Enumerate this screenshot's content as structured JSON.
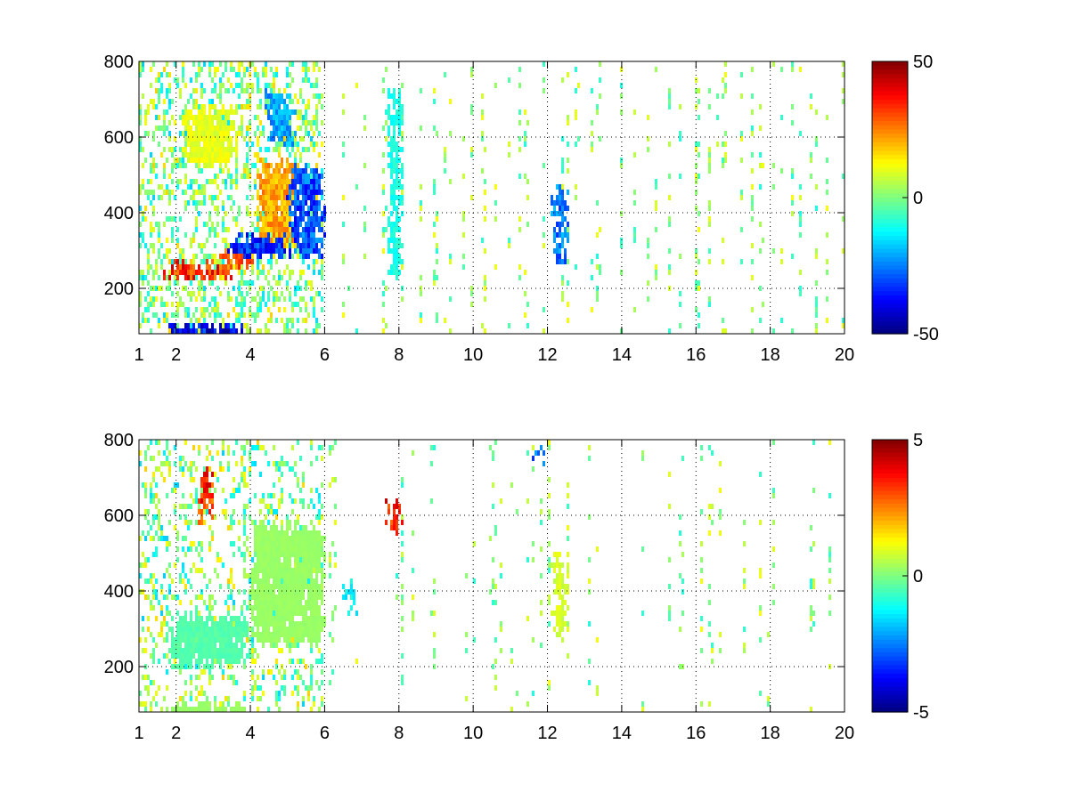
{
  "chart_data": [
    {
      "type": "heatmap",
      "title": "",
      "xlabel": "",
      "ylabel": "",
      "xlim": [
        1,
        20
      ],
      "ylim": [
        80,
        800
      ],
      "x_ticks": [
        1,
        2,
        4,
        6,
        8,
        10,
        12,
        14,
        16,
        18,
        20
      ],
      "x_tick_labels": [
        "1",
        "2",
        "4",
        "6",
        "8",
        "10",
        "12",
        "14",
        "16",
        "18",
        "20"
      ],
      "y_ticks": [
        200,
        400,
        600,
        800
      ],
      "y_tick_labels": [
        "200",
        "400",
        "600",
        "800"
      ],
      "grid": true,
      "colormap": "jet",
      "clim": [
        -50,
        50
      ],
      "colorbar_ticks": [
        50,
        0,
        -50
      ],
      "colorbar_tick_labels": [
        "50",
        "0",
        "-50"
      ],
      "features": [
        {
          "x": [
            1.9,
            3.3
          ],
          "y": 245,
          "value": 40
        },
        {
          "x": [
            3.3,
            3.9
          ],
          "y": 280,
          "value": 35
        },
        {
          "x": [
            4.4,
            5.0
          ],
          "y": [
            330,
            520
          ],
          "value": 25
        },
        {
          "x": [
            2.4,
            3.4
          ],
          "y": [
            540,
            660
          ],
          "value": 12
        },
        {
          "x": [
            3.6,
            4.8
          ],
          "y": [
            300,
            320
          ],
          "value": -40
        },
        {
          "x": [
            4.6,
            5.0
          ],
          "y": [
            600,
            700
          ],
          "value": -25
        },
        {
          "x": [
            5.2,
            5.8
          ],
          "y": [
            300,
            500
          ],
          "value": -35
        },
        {
          "x": [
            2.0,
            3.6
          ],
          "y": 85,
          "value": -45
        },
        {
          "x": [
            12.35,
            12.35
          ],
          "y": [
            280,
            460
          ],
          "value": -30
        },
        {
          "x": [
            7.9,
            7.9
          ],
          "y": [
            250,
            700
          ],
          "value": -12
        }
      ]
    },
    {
      "type": "heatmap",
      "title": "",
      "xlabel": "",
      "ylabel": "",
      "xlim": [
        1,
        20
      ],
      "ylim": [
        80,
        800
      ],
      "x_ticks": [
        1,
        2,
        4,
        6,
        8,
        10,
        12,
        14,
        16,
        18,
        20
      ],
      "x_tick_labels": [
        "1",
        "2",
        "4",
        "6",
        "8",
        "10",
        "12",
        "14",
        "16",
        "18",
        "20"
      ],
      "y_ticks": [
        200,
        400,
        600,
        800
      ],
      "y_tick_labels": [
        "200",
        "400",
        "600",
        "800"
      ],
      "grid": true,
      "colormap": "jet",
      "clim": [
        -5,
        5
      ],
      "colorbar_ticks": [
        5,
        0,
        -5
      ],
      "colorbar_tick_labels": [
        "5",
        "0",
        "-5"
      ],
      "features": [
        {
          "x": [
            2.0,
            3.8
          ],
          "y": 87,
          "value": 0.3
        },
        {
          "x": [
            2.0,
            3.8
          ],
          "y": [
            220,
            320
          ],
          "value": -0.5
        },
        {
          "x": [
            4.2,
            5.8
          ],
          "y": [
            280,
            560
          ],
          "value": 0.3
        },
        {
          "x": [
            12.35,
            12.35
          ],
          "y": [
            290,
            480
          ],
          "value": 1.0
        },
        {
          "x": [
            7.9,
            7.9
          ],
          "y": [
            580,
            620
          ],
          "value": 4.0
        },
        {
          "x": [
            2.8,
            2.8
          ],
          "y": [
            600,
            700
          ],
          "value": 4.0
        },
        {
          "x": [
            6.7,
            6.7
          ],
          "y": [
            360,
            400
          ],
          "value": -1.5
        },
        {
          "x": [
            11.8,
            11.8
          ],
          "y": 760,
          "value": -3.0
        }
      ]
    }
  ]
}
